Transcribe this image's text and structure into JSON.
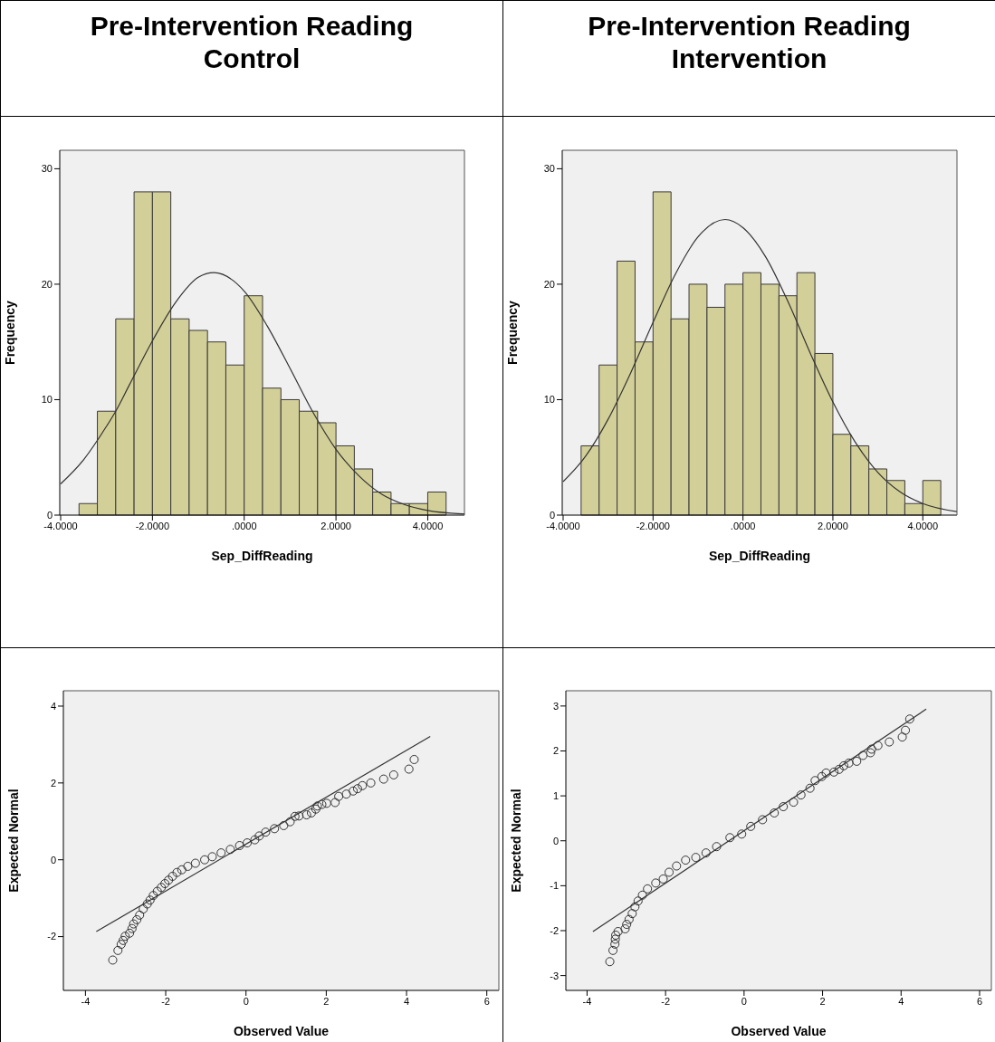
{
  "chart_data": [
    {
      "type": "histogram",
      "title": "Pre-Intervention Reading",
      "subtitle": "Control",
      "xlabel": "Sep_DiffReading",
      "ylabel": "Frequency",
      "bins": [
        -3.6,
        -3.2,
        -2.8,
        -2.4,
        -2.0,
        -1.6,
        -1.2,
        -0.8,
        -0.4,
        0.0,
        0.4,
        0.8,
        1.2,
        1.6,
        2.0,
        2.4,
        2.8,
        3.2,
        3.6,
        4.0,
        4.4
      ],
      "xlim": [
        -4.02,
        4.8
      ],
      "ylim": [
        0,
        31.6
      ],
      "xticks": [
        {
          "value": -4,
          "label": "-4.0000"
        },
        {
          "value": -2,
          "label": "-2.0000"
        },
        {
          "value": 0,
          "label": ".0000"
        },
        {
          "value": 2,
          "label": "2.0000"
        },
        {
          "value": 4,
          "label": "4.0000"
        }
      ],
      "yticks": [
        0,
        10,
        20,
        30
      ],
      "series": [
        {
          "type": "histogram",
          "color": "#d3cf98",
          "values": [
            1,
            9,
            17,
            28,
            28,
            17,
            16,
            15,
            13,
            19,
            11,
            10,
            9,
            8,
            6,
            4,
            2,
            1,
            1,
            2
          ]
        },
        {
          "type": "line",
          "color": "#333333",
          "x": [
            -4,
            -3.5,
            -3,
            -2.8,
            -2.5,
            -2,
            -1.5,
            -1,
            -0.66,
            0,
            0.5,
            1,
            1.5,
            2,
            2.5,
            3,
            3.5,
            4,
            4.8
          ],
          "values": [
            2.7,
            4.8,
            7.7,
            9.0,
            11.3,
            15.1,
            18.4,
            20.6,
            21,
            19.4,
            16.4,
            12.7,
            8.9,
            5.7,
            3.4,
            1.8,
            0.9,
            0.4,
            0.1
          ]
        }
      ]
    },
    {
      "type": "histogram",
      "title": "Pre-Intervention Reading",
      "subtitle": "Intervention",
      "xlabel": "Sep_DiffReading",
      "ylabel": "Frequency",
      "bins": [
        -3.6,
        -3.2,
        -2.8,
        -2.4,
        -2.0,
        -1.6,
        -1.2,
        -0.8,
        -0.4,
        0.0,
        0.4,
        0.8,
        1.2,
        1.6,
        2.0,
        2.4,
        2.8,
        3.2,
        3.6,
        4.0,
        4.4
      ],
      "xlim": [
        -4.02,
        4.76
      ],
      "ylim": [
        0,
        31.6
      ],
      "xticks": [
        {
          "value": -4,
          "label": "-4.0000"
        },
        {
          "value": -2,
          "label": "-2.0000"
        },
        {
          "value": 0,
          "label": ".0000"
        },
        {
          "value": 2,
          "label": "2.0000"
        },
        {
          "value": 4,
          "label": "4.0000"
        }
      ],
      "yticks": [
        0,
        10,
        20,
        30
      ],
      "series": [
        {
          "type": "histogram",
          "color": "#d3cf98",
          "values": [
            6,
            13,
            22,
            15,
            28,
            17,
            20,
            18,
            20,
            21,
            20,
            19,
            21,
            14,
            7,
            6,
            4,
            3,
            1,
            3
          ]
        },
        {
          "type": "line",
          "color": "#333333",
          "x": [
            -4,
            -3.5,
            -3,
            -2.5,
            -2,
            -1.5,
            -1,
            -0.4,
            0,
            0.5,
            1,
            1.5,
            2,
            2.5,
            3,
            3.5,
            4,
            4.76
          ],
          "values": [
            2.9,
            5.1,
            8.3,
            12.3,
            16.7,
            20.9,
            24.1,
            25.6,
            24.9,
            22.4,
            18.5,
            14.0,
            9.8,
            6.3,
            3.7,
            2.0,
            1.0,
            0.3
          ]
        }
      ]
    },
    {
      "type": "scatter",
      "xlabel": "Observed Value",
      "ylabel": "Expected Normal",
      "xlim": [
        -4.55,
        6.3
      ],
      "ylim": [
        -3.4,
        4.4
      ],
      "xticks": [
        -4,
        -2,
        0,
        2,
        4,
        6
      ],
      "yticks": [
        -2,
        0,
        2,
        4
      ],
      "series": [
        {
          "type": "scatter",
          "marker": "circle",
          "color": "#333333",
          "x": [
            -3.32,
            -3.19,
            -3.11,
            -3.06,
            -3.01,
            -2.9,
            -2.84,
            -2.8,
            -2.72,
            -2.65,
            -2.56,
            -2.46,
            -2.39,
            -2.31,
            -2.21,
            -2.11,
            -2.02,
            -1.93,
            -1.83,
            -1.72,
            -1.6,
            -1.45,
            -1.26,
            -1.03,
            -0.84,
            -0.62,
            -0.39,
            -0.16,
            0.03,
            0.22,
            0.33,
            0.49,
            0.71,
            0.94,
            1.1,
            1.22,
            1.32,
            1.51,
            1.63,
            1.74,
            1.78,
            1.89,
            2.01,
            2.22,
            2.31,
            2.5,
            2.67,
            2.78,
            2.9,
            3.11,
            3.43,
            3.68,
            4.06,
            4.19
          ],
          "values": [
            -2.61,
            -2.36,
            -2.2,
            -2.1,
            -1.99,
            -1.91,
            -1.79,
            -1.67,
            -1.56,
            -1.44,
            -1.28,
            -1.15,
            -1.05,
            -0.93,
            -0.82,
            -0.72,
            -0.62,
            -0.53,
            -0.43,
            -0.33,
            -0.26,
            -0.17,
            -0.09,
            0.0,
            0.08,
            0.18,
            0.27,
            0.37,
            0.44,
            0.52,
            0.62,
            0.72,
            0.81,
            0.89,
            0.99,
            1.13,
            1.14,
            1.17,
            1.22,
            1.32,
            1.4,
            1.44,
            1.47,
            1.49,
            1.65,
            1.71,
            1.79,
            1.85,
            1.93,
            2.0,
            2.1,
            2.21,
            2.36,
            2.61
          ]
        },
        {
          "type": "line",
          "marker": "none",
          "color": "#333333",
          "x": [
            -3.73,
            4.59
          ],
          "values": [
            -1.87,
            3.21
          ]
        }
      ]
    },
    {
      "type": "scatter",
      "xlabel": "Observed Value",
      "ylabel": "Expected Normal",
      "xlim": [
        -4.54,
        6.3
      ],
      "ylim": [
        -3.33,
        3.34
      ],
      "xticks": [
        -4,
        -2,
        0,
        2,
        4,
        6
      ],
      "yticks": [
        -3,
        -2,
        -1,
        0,
        1,
        2,
        3
      ],
      "series": [
        {
          "type": "scatter",
          "marker": "circle",
          "color": "#333333",
          "x": [
            -3.42,
            -3.34,
            -3.29,
            -3.28,
            -3.27,
            -3.21,
            -3.03,
            -2.99,
            -2.93,
            -2.85,
            -2.78,
            -2.7,
            -2.59,
            -2.46,
            -2.25,
            -2.06,
            -1.91,
            -1.72,
            -1.49,
            -1.23,
            -0.97,
            -0.7,
            -0.36,
            -0.06,
            0.17,
            0.47,
            0.77,
            1.0,
            1.26,
            1.45,
            1.68,
            1.81,
            1.98,
            2.09,
            2.29,
            2.42,
            2.54,
            2.67,
            2.87,
            3.03,
            3.22,
            3.25,
            3.41,
            3.7,
            4.03,
            4.11,
            4.22
          ],
          "values": [
            -2.69,
            -2.44,
            -2.3,
            -2.19,
            -2.1,
            -2.02,
            -1.96,
            -1.86,
            -1.75,
            -1.62,
            -1.47,
            -1.34,
            -1.21,
            -1.07,
            -0.94,
            -0.85,
            -0.7,
            -0.56,
            -0.43,
            -0.37,
            -0.27,
            -0.13,
            0.07,
            0.15,
            0.32,
            0.47,
            0.62,
            0.76,
            0.86,
            1.02,
            1.17,
            1.34,
            1.43,
            1.51,
            1.53,
            1.59,
            1.67,
            1.73,
            1.77,
            1.9,
            1.96,
            2.04,
            2.12,
            2.2,
            2.31,
            2.46,
            2.71
          ]
        },
        {
          "type": "line",
          "marker": "none",
          "color": "#333333",
          "x": [
            -3.85,
            4.64
          ],
          "values": [
            -2.02,
            2.93
          ]
        }
      ]
    }
  ]
}
